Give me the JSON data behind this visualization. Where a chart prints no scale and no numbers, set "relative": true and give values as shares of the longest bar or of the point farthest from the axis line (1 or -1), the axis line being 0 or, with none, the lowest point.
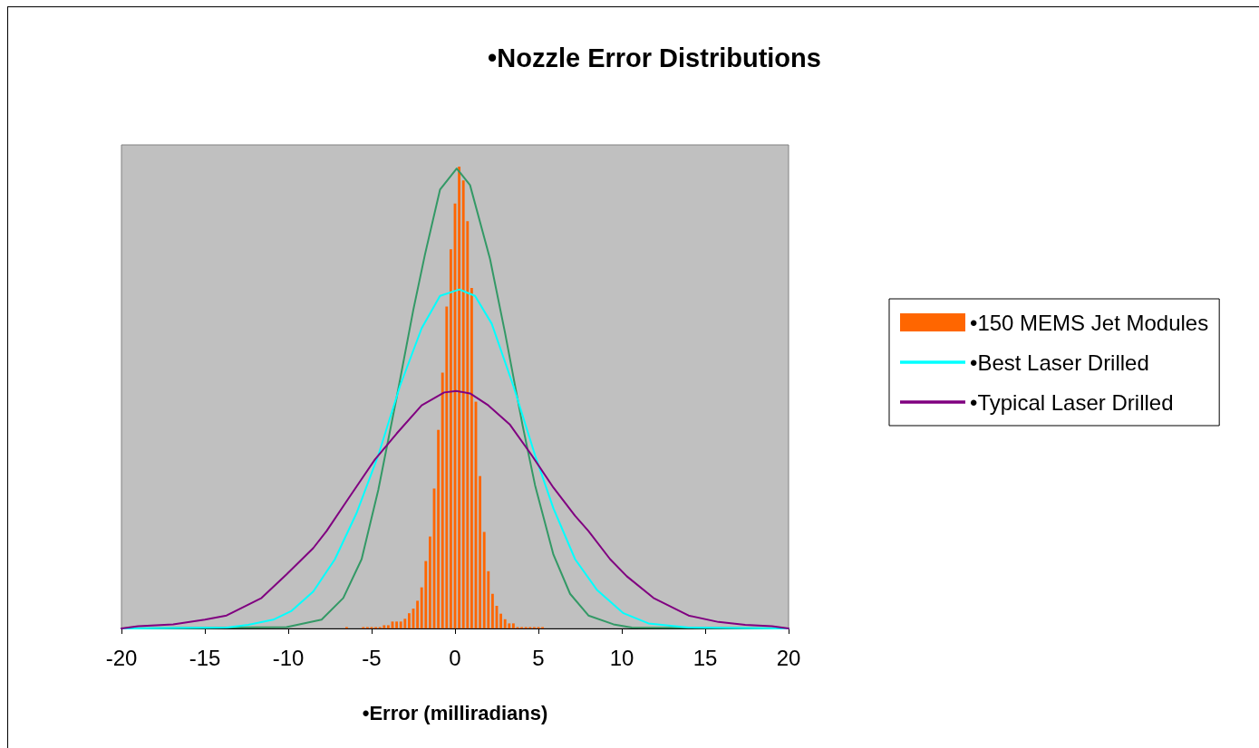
{
  "chart_data": {
    "type": "line",
    "title": "•Nozzle Error Distributions",
    "xlabel": "•Error (milliradians)",
    "relative": true,
    "xlim": [
      -20,
      20
    ],
    "xticks": [
      -20,
      -15,
      -10,
      -5,
      0,
      5,
      10,
      15,
      20
    ],
    "grid": false,
    "legend": "right",
    "marker": "none",
    "line_style": "solid",
    "series": [
      {
        "name": "•150 MEMS Jet Modules",
        "type": "histogram",
        "color": "#ff6600",
        "bins": [
          -6.625,
          -6.375,
          -6.125,
          -5.875,
          -5.625,
          -5.375,
          -5.125,
          -4.875,
          -4.625,
          -4.375,
          -4.125,
          -3.875,
          -3.625,
          -3.375,
          -3.125,
          -2.875,
          -2.625,
          -2.375,
          -2.125,
          -1.875,
          -1.625,
          -1.375,
          -1.125,
          -0.875,
          -0.625,
          -0.375,
          -0.125,
          0.125,
          0.375,
          0.625,
          0.875,
          1.125,
          1.375,
          1.625,
          1.875,
          2.125,
          2.375,
          2.625,
          2.875,
          3.125,
          3.375,
          3.625,
          3.875,
          4.125,
          4.375,
          4.625,
          4.875,
          5.125,
          5.375
        ],
        "values": [
          0.003,
          0,
          0,
          0,
          0.003,
          0.003,
          0.003,
          0.003,
          0.003,
          0.007,
          0.007,
          0.015,
          0.015,
          0.015,
          0.021,
          0.033,
          0.043,
          0.06,
          0.089,
          0.146,
          0.199,
          0.303,
          0.43,
          0.554,
          0.697,
          0.821,
          0.92,
          1,
          0.97,
          0.882,
          0.737,
          0.491,
          0.33,
          0.209,
          0.124,
          0.075,
          0.049,
          0.032,
          0.02,
          0.011,
          0.011,
          0.003,
          0.003,
          0.003,
          0.003,
          0.003,
          0.003,
          0.003
        ]
      },
      {
        "color": "#339966",
        "x": [
          -20,
          -10.1,
          -8,
          -6.7,
          -5.6,
          -4.6,
          -3.5,
          -2.5,
          -1.8,
          -0.9,
          0.1,
          0.9,
          2.1,
          3,
          4.05,
          4.8,
          5.9,
          6.9,
          8,
          9.5,
          10.6,
          20
        ],
        "values": [
          0,
          0.003,
          0.019,
          0.066,
          0.15,
          0.3,
          0.5,
          0.69,
          0.81,
          0.95,
          0.996,
          0.96,
          0.8,
          0.64,
          0.44,
          0.31,
          0.16,
          0.075,
          0.028,
          0.009,
          0.002,
          0
        ]
      },
      {
        "name": "•Best Laser Drilled",
        "color": "#00ffff",
        "x": [
          -20,
          -13.7,
          -12.4,
          -10.9,
          -9.8,
          -8.5,
          -7.2,
          -5.9,
          -4.6,
          -3.3,
          -2,
          -0.9,
          0.26,
          1.2,
          2.2,
          3.5,
          4.8,
          5.9,
          7.2,
          8.5,
          10.1,
          11.6,
          14,
          20
        ],
        "values": [
          0,
          0.002,
          0.008,
          0.019,
          0.038,
          0.08,
          0.15,
          0.25,
          0.375,
          0.525,
          0.65,
          0.72,
          0.734,
          0.72,
          0.66,
          0.525,
          0.375,
          0.26,
          0.15,
          0.084,
          0.033,
          0.011,
          0.002,
          0
        ]
      },
      {
        "name": "•Typical Laser Drilled",
        "color": "#800080",
        "x": [
          -20,
          -19,
          -16.9,
          -15,
          -13.7,
          -11.6,
          -10.1,
          -8.5,
          -7.7,
          -6.4,
          -4.8,
          -3.5,
          -2,
          -0.65,
          0.08,
          0.9,
          2,
          3.3,
          4.6,
          5.9,
          7.2,
          8,
          9.3,
          10.3,
          11.9,
          14,
          15.8,
          17.4,
          19,
          20
        ],
        "values": [
          0,
          0.005,
          0.009,
          0.019,
          0.028,
          0.066,
          0.117,
          0.174,
          0.211,
          0.281,
          0.366,
          0.422,
          0.483,
          0.511,
          0.514,
          0.509,
          0.483,
          0.441,
          0.375,
          0.305,
          0.244,
          0.211,
          0.15,
          0.113,
          0.066,
          0.028,
          0.014,
          0.008,
          0.005,
          0
        ]
      }
    ]
  }
}
